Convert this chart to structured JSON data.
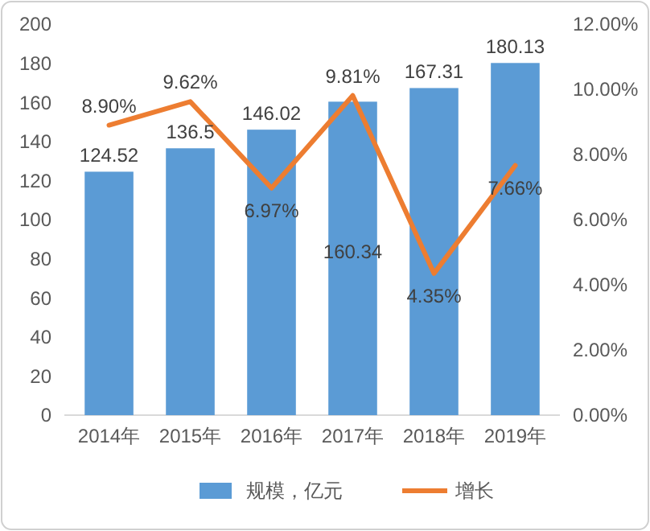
{
  "chart_data": {
    "type": "bar",
    "categories": [
      "2014年",
      "2015年",
      "2016年",
      "2017年",
      "2018年",
      "2019年"
    ],
    "series": [
      {
        "name": "规模，亿元",
        "type": "bar",
        "color": "#5b9bd5",
        "values": [
          124.52,
          136.5,
          146.02,
          160.34,
          167.31,
          180.13
        ],
        "value_labels": [
          "124.52",
          "136.5",
          "146.02",
          "160.34",
          "167.31",
          "180.13"
        ]
      },
      {
        "name": "增长",
        "type": "line",
        "axis": "y2",
        "color": "#ed7d31",
        "values": [
          8.9,
          9.62,
          6.97,
          9.81,
          4.35,
          7.66
        ],
        "value_labels": [
          "8.90%",
          "9.62%",
          "6.97%",
          "9.81%",
          "4.35%",
          "7.66%"
        ]
      }
    ],
    "ylim": [
      0,
      200
    ],
    "yticks": [
      0,
      20,
      40,
      60,
      80,
      100,
      120,
      140,
      160,
      180,
      200
    ],
    "y2lim": [
      0,
      12
    ],
    "y2ticks": [
      {
        "value": 0,
        "label": "0.00%"
      },
      {
        "value": 2,
        "label": "2.00%"
      },
      {
        "value": 4,
        "label": "4.00%"
      },
      {
        "value": 6,
        "label": "6.00%"
      },
      {
        "value": 8,
        "label": "8.00%"
      },
      {
        "value": 10,
        "label": "10.00%"
      },
      {
        "value": 12,
        "label": "12.00%"
      }
    ],
    "legend": "bottom",
    "marker": "none",
    "line_style": "solid"
  }
}
